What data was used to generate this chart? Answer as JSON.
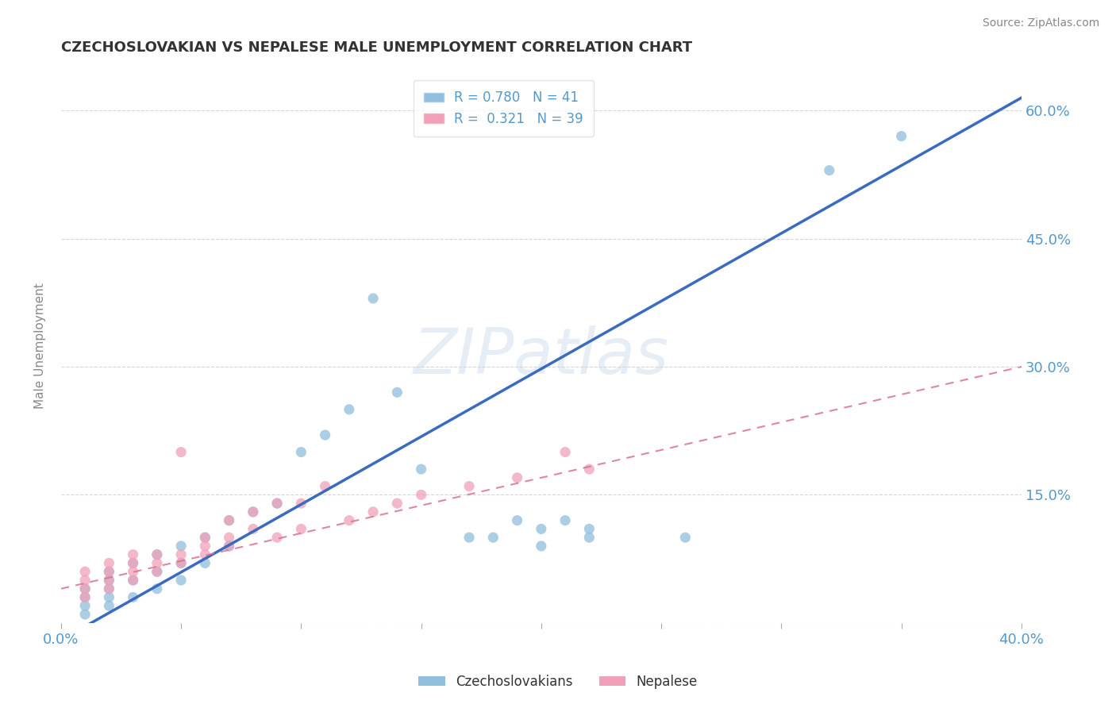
{
  "title": "CZECHOSLOVAKIAN VS NEPALESE MALE UNEMPLOYMENT CORRELATION CHART",
  "source_text": "Source: ZipAtlas.com",
  "ylabel": "Male Unemployment",
  "watermark": "ZIPatlas",
  "xmin": 0.0,
  "xmax": 0.4,
  "ymin": 0.0,
  "ymax": 0.65,
  "yticks": [
    0.0,
    0.15,
    0.3,
    0.45,
    0.6
  ],
  "xticks": [
    0.0,
    0.05,
    0.1,
    0.15,
    0.2,
    0.25,
    0.3,
    0.35,
    0.4
  ],
  "ytick_labels": [
    "",
    "15.0%",
    "30.0%",
    "45.0%",
    "60.0%"
  ],
  "r_czech": 0.78,
  "n_czech": 41,
  "r_nepalese": 0.321,
  "n_nepalese": 39,
  "blue_line_color": "#3a6bbf",
  "pink_line_color": "#d9748a",
  "dot_blue_color": "#90bedd",
  "dot_pink_color": "#f0a0b8",
  "dot_alpha": 0.75,
  "dot_size": 90,
  "background_color": "#ffffff",
  "grid_color": "#cccccc",
  "title_color": "#333333",
  "tick_label_color": "#5599cc",
  "czech_x": [
    0.01,
    0.01,
    0.01,
    0.01,
    0.02,
    0.02,
    0.02,
    0.02,
    0.02,
    0.03,
    0.03,
    0.03,
    0.04,
    0.04,
    0.04,
    0.05,
    0.05,
    0.05,
    0.06,
    0.06,
    0.07,
    0.07,
    0.08,
    0.09,
    0.1,
    0.11,
    0.12,
    0.13,
    0.14,
    0.15,
    0.17,
    0.18,
    0.19,
    0.2,
    0.2,
    0.21,
    0.22,
    0.22,
    0.26,
    0.32,
    0.35
  ],
  "czech_y": [
    0.01,
    0.02,
    0.03,
    0.04,
    0.02,
    0.03,
    0.04,
    0.05,
    0.06,
    0.03,
    0.05,
    0.07,
    0.04,
    0.06,
    0.08,
    0.05,
    0.07,
    0.09,
    0.07,
    0.1,
    0.09,
    0.12,
    0.13,
    0.14,
    0.2,
    0.22,
    0.25,
    0.38,
    0.27,
    0.18,
    0.1,
    0.1,
    0.12,
    0.09,
    0.11,
    0.12,
    0.1,
    0.11,
    0.1,
    0.53,
    0.57
  ],
  "nepalese_x": [
    0.01,
    0.01,
    0.01,
    0.01,
    0.02,
    0.02,
    0.02,
    0.02,
    0.03,
    0.03,
    0.03,
    0.03,
    0.04,
    0.04,
    0.04,
    0.05,
    0.05,
    0.05,
    0.06,
    0.06,
    0.06,
    0.07,
    0.07,
    0.07,
    0.08,
    0.08,
    0.09,
    0.09,
    0.1,
    0.1,
    0.11,
    0.12,
    0.13,
    0.14,
    0.15,
    0.17,
    0.19,
    0.21,
    0.22
  ],
  "nepalese_y": [
    0.03,
    0.04,
    0.05,
    0.06,
    0.04,
    0.05,
    0.06,
    0.07,
    0.05,
    0.06,
    0.07,
    0.08,
    0.06,
    0.07,
    0.08,
    0.07,
    0.08,
    0.2,
    0.08,
    0.09,
    0.1,
    0.09,
    0.1,
    0.12,
    0.11,
    0.13,
    0.1,
    0.14,
    0.11,
    0.14,
    0.16,
    0.12,
    0.13,
    0.14,
    0.15,
    0.16,
    0.17,
    0.2,
    0.18
  ]
}
